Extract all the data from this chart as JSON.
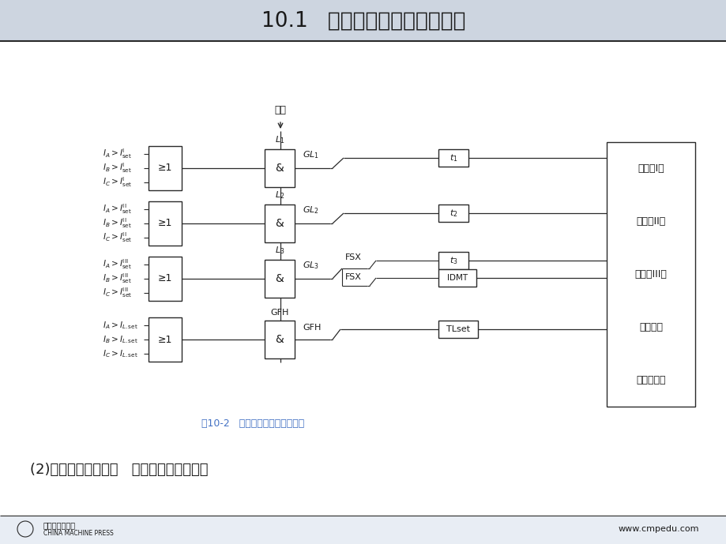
{
  "title": "10.1   中低压线路微机保护装置",
  "title_fontsize": 19,
  "title_bg_color": "#cdd5e0",
  "bg_color": "#e8edf4",
  "caption": "图10-2   三段式过电流保护逻辑图",
  "caption_color": "#4472c4",
  "bottom_text": "(2)三段式过电流保护   装置设三段式保护，",
  "bottom_right": "www.cmpedu.com",
  "line_color": "#2a2a2a",
  "box_color": "#2a2a2a",
  "text_color": "#1a1a1a",
  "right_labels": [
    "过电流I段",
    "过电流II段",
    "过电流III段",
    "反时限段",
    "过负荷保护"
  ],
  "row_input_labels": [
    [
      "$I_A>I^{\\rm I}_{\\rm set}$",
      "$I_B>I^{\\rm I}_{\\rm set}$",
      "$I_C>I^{\\rm I}_{\\rm set}$"
    ],
    [
      "$I_A>I^{\\rm II}_{\\rm set}$",
      "$I_B>I^{\\rm II}_{\\rm set}$",
      "$I_C>I^{\\rm II}_{\\rm set}$"
    ],
    [
      "$I_A>I^{\\rm III}_{\\rm set}$",
      "$I_B>I^{\\rm III}_{\\rm set}$",
      "$I_C>I^{\\rm III}_{\\rm set}$"
    ],
    [
      "$I_A>I_{L.{\\rm set}}$",
      "$I_B>I_{L.{\\rm set}}$",
      "$I_C>I_{L.{\\rm set}}$"
    ]
  ],
  "and_labels": [
    "$L_1$",
    "$L_2$",
    "$L_3$",
    "GFH"
  ],
  "gl_labels": [
    "$GL_1$",
    "$GL_2$",
    "$GL_3$",
    "GFH"
  ],
  "timer_labels": [
    "$t_1$",
    "$t_2$",
    "$t_3$",
    "TLset"
  ]
}
